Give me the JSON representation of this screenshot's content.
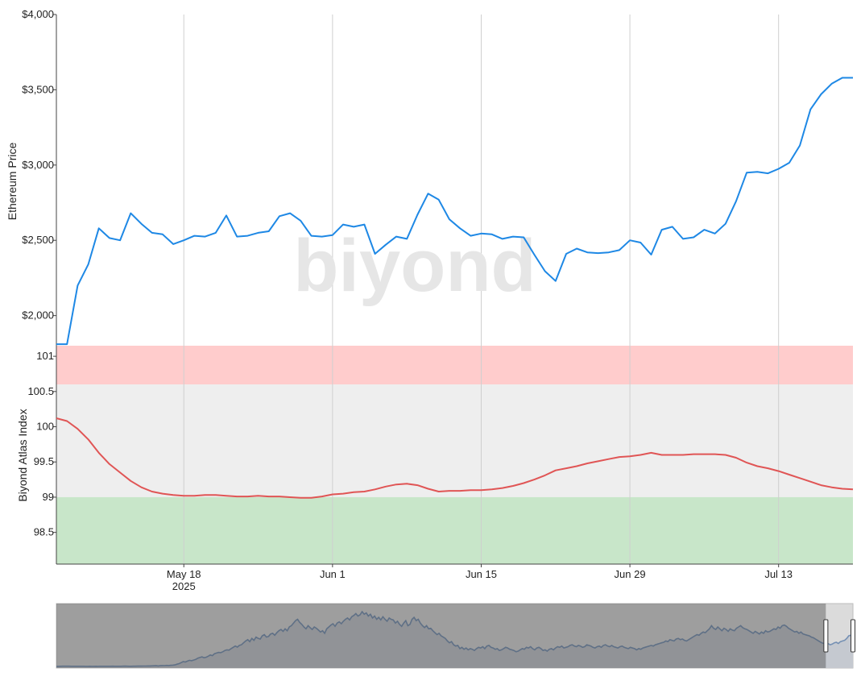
{
  "watermark": "biyond",
  "chart_data": [
    {
      "type": "line",
      "panel": "price",
      "ylabel": "Ethereum Price",
      "ylim": [
        1800,
        4000
      ],
      "yticks": [
        2000,
        2500,
        3000,
        3500,
        4000
      ],
      "ytick_labels": [
        "$2,000",
        "$2,500",
        "$3,000",
        "$3,500",
        "$4,000"
      ],
      "grid": "vertical only",
      "series": [
        {
          "color": "#1e88e5",
          "x": [
            "2025-05-06",
            "2025-05-07",
            "2025-05-08",
            "2025-05-09",
            "2025-05-10",
            "2025-05-11",
            "2025-05-12",
            "2025-05-13",
            "2025-05-14",
            "2025-05-15",
            "2025-05-16",
            "2025-05-17",
            "2025-05-18",
            "2025-05-19",
            "2025-05-20",
            "2025-05-21",
            "2025-05-22",
            "2025-05-23",
            "2025-05-24",
            "2025-05-25",
            "2025-05-26",
            "2025-05-27",
            "2025-05-28",
            "2025-05-29",
            "2025-05-30",
            "2025-05-31",
            "2025-06-01",
            "2025-06-02",
            "2025-06-03",
            "2025-06-04",
            "2025-06-05",
            "2025-06-06",
            "2025-06-07",
            "2025-06-08",
            "2025-06-09",
            "2025-06-10",
            "2025-06-11",
            "2025-06-12",
            "2025-06-13",
            "2025-06-14",
            "2025-06-15",
            "2025-06-16",
            "2025-06-17",
            "2025-06-18",
            "2025-06-19",
            "2025-06-20",
            "2025-06-21",
            "2025-06-22",
            "2025-06-23",
            "2025-06-24",
            "2025-06-25",
            "2025-06-26",
            "2025-06-27",
            "2025-06-28",
            "2025-06-29",
            "2025-06-30",
            "2025-07-01",
            "2025-07-02",
            "2025-07-03",
            "2025-07-04",
            "2025-07-05",
            "2025-07-06",
            "2025-07-07",
            "2025-07-08",
            "2025-07-09",
            "2025-07-10",
            "2025-07-11",
            "2025-07-12",
            "2025-07-13",
            "2025-07-14",
            "2025-07-15",
            "2025-07-16",
            "2025-07-17",
            "2025-07-18",
            "2025-07-19",
            "2025-07-20"
          ],
          "y": [
            1810,
            1810,
            2200,
            2340,
            2580,
            2515,
            2500,
            2680,
            2610,
            2550,
            2540,
            2475,
            2500,
            2530,
            2525,
            2550,
            2665,
            2525,
            2530,
            2550,
            2560,
            2660,
            2680,
            2630,
            2530,
            2525,
            2535,
            2605,
            2590,
            2605,
            2410,
            2470,
            2525,
            2510,
            2670,
            2810,
            2770,
            2640,
            2580,
            2530,
            2545,
            2540,
            2510,
            2525,
            2520,
            2405,
            2295,
            2230,
            2410,
            2445,
            2420,
            2415,
            2420,
            2435,
            2500,
            2485,
            2405,
            2570,
            2590,
            2510,
            2520,
            2570,
            2545,
            2610,
            2760,
            2950,
            2955,
            2945,
            2975,
            3015,
            3130,
            3370,
            3470,
            3540,
            3580,
            3580
          ]
        }
      ]
    },
    {
      "type": "line",
      "panel": "index",
      "ylabel": "Biyond Atlas Index",
      "ylim": [
        98.05,
        101.15
      ],
      "yticks": [
        98.5,
        99,
        99.5,
        100,
        100.5,
        101
      ],
      "ytick_labels": [
        "98.5",
        "99",
        "99.5",
        "100",
        "100.5",
        "101"
      ],
      "bands": [
        {
          "from": 100.6,
          "to": 101.15,
          "color": "#ffcccc"
        },
        {
          "from": 99.0,
          "to": 100.6,
          "color": "#eeeeee"
        },
        {
          "from": 98.05,
          "to": 99.0,
          "color": "#c8e6c9"
        }
      ],
      "xtick_labels": [
        "May 18",
        "Jun 1",
        "Jun 15",
        "Jun 29",
        "Jul 13"
      ],
      "xtick_dates": [
        "2025-05-18",
        "2025-06-01",
        "2025-06-15",
        "2025-06-29",
        "2025-07-13"
      ],
      "xtick_sublabel": "2025",
      "series": [
        {
          "color": "#e05555",
          "x": [
            "2025-05-06",
            "2025-05-07",
            "2025-05-08",
            "2025-05-09",
            "2025-05-10",
            "2025-05-11",
            "2025-05-12",
            "2025-05-13",
            "2025-05-14",
            "2025-05-15",
            "2025-05-16",
            "2025-05-17",
            "2025-05-18",
            "2025-05-19",
            "2025-05-20",
            "2025-05-21",
            "2025-05-22",
            "2025-05-23",
            "2025-05-24",
            "2025-05-25",
            "2025-05-26",
            "2025-05-27",
            "2025-05-28",
            "2025-05-29",
            "2025-05-30",
            "2025-05-31",
            "2025-06-01",
            "2025-06-02",
            "2025-06-03",
            "2025-06-04",
            "2025-06-05",
            "2025-06-06",
            "2025-06-07",
            "2025-06-08",
            "2025-06-09",
            "2025-06-10",
            "2025-06-11",
            "2025-06-12",
            "2025-06-13",
            "2025-06-14",
            "2025-06-15",
            "2025-06-16",
            "2025-06-17",
            "2025-06-18",
            "2025-06-19",
            "2025-06-20",
            "2025-06-21",
            "2025-06-22",
            "2025-06-23",
            "2025-06-24",
            "2025-06-25",
            "2025-06-26",
            "2025-06-27",
            "2025-06-28",
            "2025-06-29",
            "2025-06-30",
            "2025-07-01",
            "2025-07-02",
            "2025-07-03",
            "2025-07-04",
            "2025-07-05",
            "2025-07-06",
            "2025-07-07",
            "2025-07-08",
            "2025-07-09",
            "2025-07-10",
            "2025-07-11",
            "2025-07-12",
            "2025-07-13",
            "2025-07-14",
            "2025-07-15",
            "2025-07-16",
            "2025-07-17",
            "2025-07-18",
            "2025-07-19",
            "2025-07-20"
          ],
          "y": [
            100.12,
            100.08,
            99.97,
            99.82,
            99.63,
            99.47,
            99.35,
            99.23,
            99.14,
            99.08,
            99.05,
            99.03,
            99.02,
            99.02,
            99.03,
            99.03,
            99.02,
            99.01,
            99.01,
            99.02,
            99.01,
            99.01,
            99.0,
            98.99,
            98.99,
            99.01,
            99.04,
            99.05,
            99.07,
            99.08,
            99.11,
            99.15,
            99.18,
            99.19,
            99.17,
            99.12,
            99.08,
            99.09,
            99.09,
            99.1,
            99.1,
            99.11,
            99.13,
            99.16,
            99.2,
            99.25,
            99.31,
            99.38,
            99.41,
            99.44,
            99.48,
            99.51,
            99.54,
            99.57,
            99.58,
            99.6,
            99.63,
            99.6,
            99.6,
            99.6,
            99.61,
            99.61,
            99.61,
            99.6,
            99.56,
            99.49,
            99.44,
            99.41,
            99.37,
            99.32,
            99.27,
            99.22,
            99.17,
            99.14,
            99.12,
            99.11
          ]
        }
      ]
    },
    {
      "type": "area",
      "panel": "range-navigator",
      "series": [
        {
          "color": "#1e5aa8",
          "y": [
            100,
            100.5,
            101.5,
            102,
            101.8,
            102.2,
            102,
            101.5,
            101,
            101.2,
            101.5,
            101.3,
            101,
            101.1,
            100.8,
            100.9,
            101,
            100.7,
            100.6,
            101,
            100.8,
            101.2,
            101,
            101.4,
            101.2,
            101.5,
            101.3,
            101.6,
            101.2,
            101,
            101.3,
            101.5,
            101.8,
            102.5,
            101.8,
            101.2,
            101.5,
            101.8,
            102,
            102.3,
            102.5,
            102.8,
            103,
            103.2,
            104,
            103.5,
            104.5,
            105,
            105.5,
            104,
            106,
            107,
            106.5,
            108,
            107,
            109,
            110,
            112,
            118,
            122,
            130,
            138,
            135,
            142,
            148,
            145,
            150,
            155,
            165,
            170,
            175,
            168,
            172,
            180,
            190,
            185,
            200,
            205,
            210,
            208,
            215,
            225,
            230,
            228,
            240,
            250,
            260,
            252,
            265,
            270,
            285,
            300,
            310,
            295,
            320,
            305,
            330,
            320,
            315,
            340,
            350,
            330,
            335,
            355,
            360,
            345,
            365,
            380,
            390,
            375,
            395,
            380,
            410,
            420,
            440,
            460,
            470,
            445,
            430,
            410,
            395,
            420,
            405,
            390,
            410,
            400,
            385,
            370,
            380,
            360,
            395,
            410,
            425,
            435,
            415,
            440,
            450,
            435,
            455,
            470,
            480,
            465,
            490,
            500,
            515,
            495,
            505,
            530,
            510,
            520,
            495,
            510,
            480,
            495,
            470,
            485,
            465,
            490,
            470,
            455,
            480,
            470,
            465,
            440,
            455,
            430,
            415,
            440,
            460,
            420,
            430,
            470,
            485,
            460,
            470,
            440,
            420,
            405,
            420,
            395,
            400,
            380,
            365,
            350,
            360,
            340,
            330,
            320,
            300,
            285,
            295,
            270,
            260,
            265,
            240,
            250,
            235,
            245,
            230,
            240,
            235,
            225,
            240,
            250,
            245,
            255,
            240,
            260,
            265,
            250,
            245,
            235,
            240,
            225,
            230,
            240,
            250,
            245,
            235,
            230,
            225,
            215,
            220,
            230,
            240,
            235,
            250,
            245,
            255,
            240,
            230,
            245,
            250,
            240,
            225,
            230,
            220,
            235,
            240,
            230,
            245,
            255,
            250,
            260,
            245,
            250,
            255,
            265,
            270,
            260,
            255,
            265,
            260,
            250,
            255,
            270,
            265,
            260,
            250,
            245,
            255,
            260,
            250,
            265,
            270,
            260,
            255,
            265,
            255,
            250,
            245,
            255,
            260,
            250,
            245,
            240,
            250,
            245,
            240,
            230,
            240,
            235,
            245,
            250,
            255,
            260,
            265,
            260,
            270,
            275,
            280,
            285,
            290,
            300,
            295,
            310,
            305,
            300,
            315,
            320,
            310,
            315,
            305,
            300,
            310,
            320,
            330,
            340,
            350,
            345,
            360,
            370,
            365,
            380,
            395,
            420,
            400,
            390,
            410,
            395,
            380,
            400,
            390,
            375,
            395,
            385,
            380,
            400,
            410,
            420,
            405,
            395,
            390,
            380,
            370,
            360,
            375,
            365,
            355,
            370,
            360,
            380,
            370,
            375,
            385,
            395,
            390,
            410,
            400,
            420,
            425,
            415,
            400,
            390,
            380,
            370,
            375,
            360,
            370,
            355,
            350,
            345,
            340,
            330,
            325,
            315,
            305,
            295,
            285,
            280,
            290,
            280,
            270,
            275,
            285,
            290,
            280,
            295,
            300,
            305,
            320,
            340,
            345,
            330
          ]
        }
      ],
      "selected_range": [
        0.966,
        1.0
      ]
    }
  ]
}
